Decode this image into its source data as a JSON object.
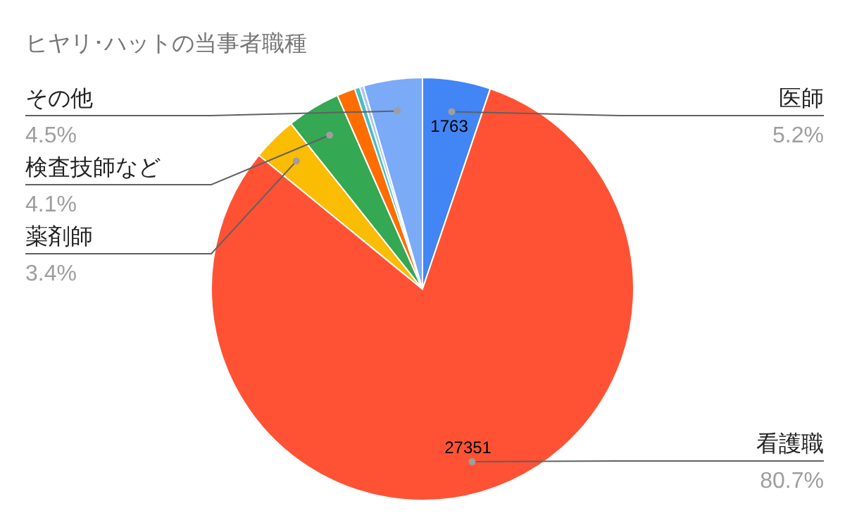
{
  "chart_data": {
    "type": "pie",
    "title": "ヒヤリ･ハットの当事者職種",
    "categories": [
      "医師",
      "看護職",
      "薬剤師",
      "検査技師など",
      null,
      null,
      null,
      "その他"
    ],
    "values": [
      1763,
      27351,
      1152,
      1390,
      474,
      136,
      102,
      1525
    ],
    "colors": [
      "#4285f4",
      "#ff5235",
      "#fbbc04",
      "#34a853",
      "#ff6d01",
      "#46bdc6",
      "#a9c4f5",
      "#7baaf7"
    ],
    "value_labels": [
      "1763",
      "27351",
      null,
      null,
      null,
      null,
      null,
      null
    ],
    "annotations": [
      {
        "text": "5.2%",
        "x": "医師"
      },
      {
        "text": "80.7%",
        "x": "看護職"
      },
      {
        "text": "3.4%",
        "x": "薬剤師"
      },
      {
        "text": "4.1%",
        "x": "検査技師など"
      },
      {
        "text": "4.5%",
        "x": "その他"
      }
    ]
  }
}
